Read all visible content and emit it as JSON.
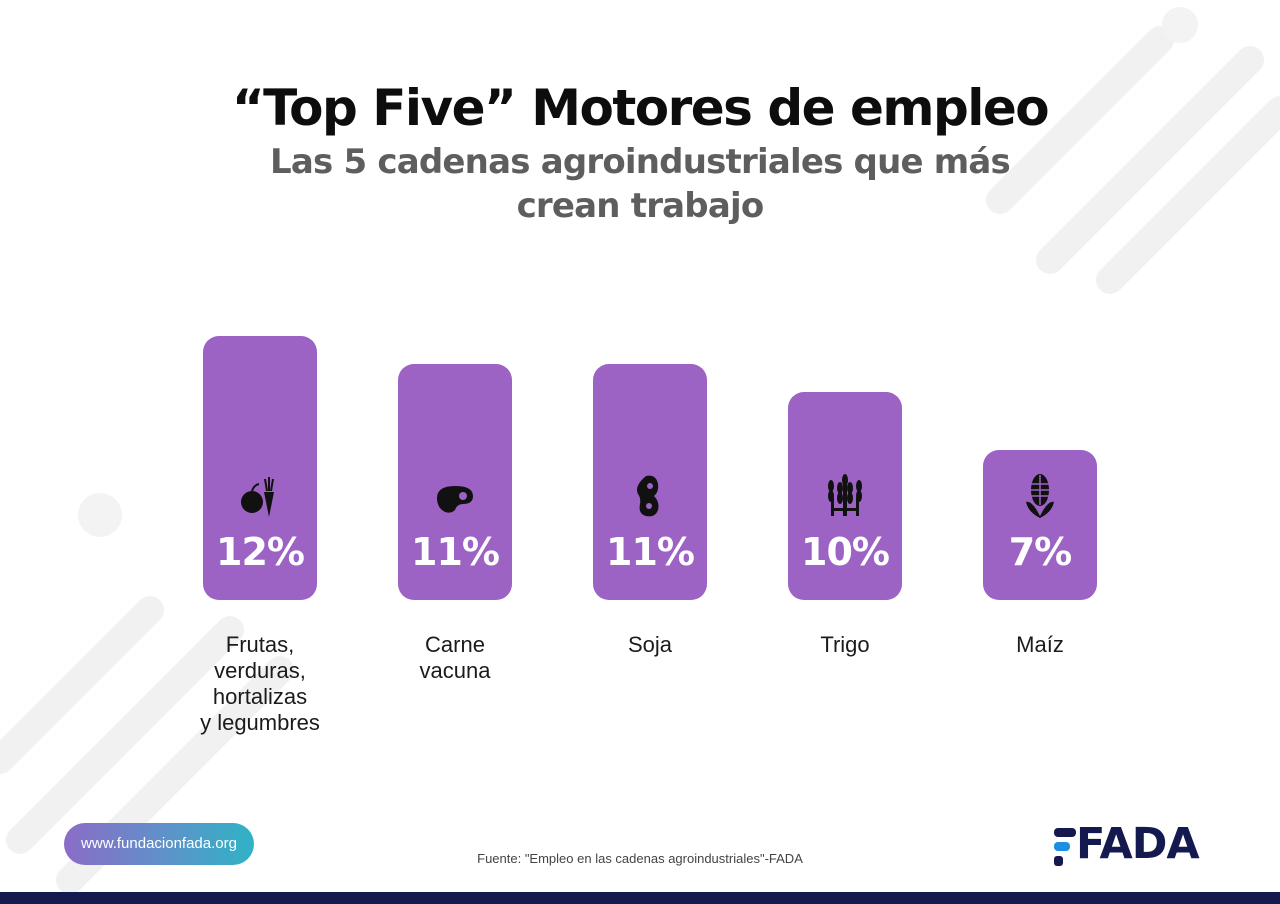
{
  "header": {
    "title": "“Top Five” Motores de empleo",
    "subtitle": "Las 5 cadenas agroindustriales que más crean trabajo"
  },
  "chart_data": {
    "type": "bar",
    "title": "“Top Five” Motores de empleo",
    "subtitle": "Las 5 cadenas agroindustriales que más crean trabajo",
    "categories": [
      "Frutas, verduras, hortalizas y legumbres",
      "Carne vacuna",
      "Soja",
      "Trigo",
      "Maíz"
    ],
    "category_labels": [
      "Frutas,\nverduras,\nhortalizas\ny legumbres",
      "Carne\nvacuna",
      "Soja",
      "Trigo",
      "Maíz"
    ],
    "values": [
      12,
      11,
      11,
      10,
      7
    ],
    "value_labels": [
      "12%",
      "11%",
      "11%",
      "10%",
      "7%"
    ],
    "icons": [
      "fruit-vegetable-icon",
      "steak-icon",
      "soybean-icon",
      "wheat-icon",
      "corn-icon"
    ],
    "unit": "%",
    "xlabel": "",
    "ylabel": "",
    "ylim": [
      0,
      12
    ],
    "grid": false,
    "legend": "none",
    "bar_color": "#9c62c4"
  },
  "footer": {
    "url": "www.fundacionfada.org",
    "source": "Fuente: \"Empleo en las cadenas agroindustriales\"-FADA",
    "logo": "FADA"
  },
  "colors": {
    "bar": "#9c62c4",
    "title": "#0d0d0d",
    "subtitle": "#5e5e5e",
    "logo_navy": "#141a4f",
    "logo_accent": "#1a8fe3"
  }
}
